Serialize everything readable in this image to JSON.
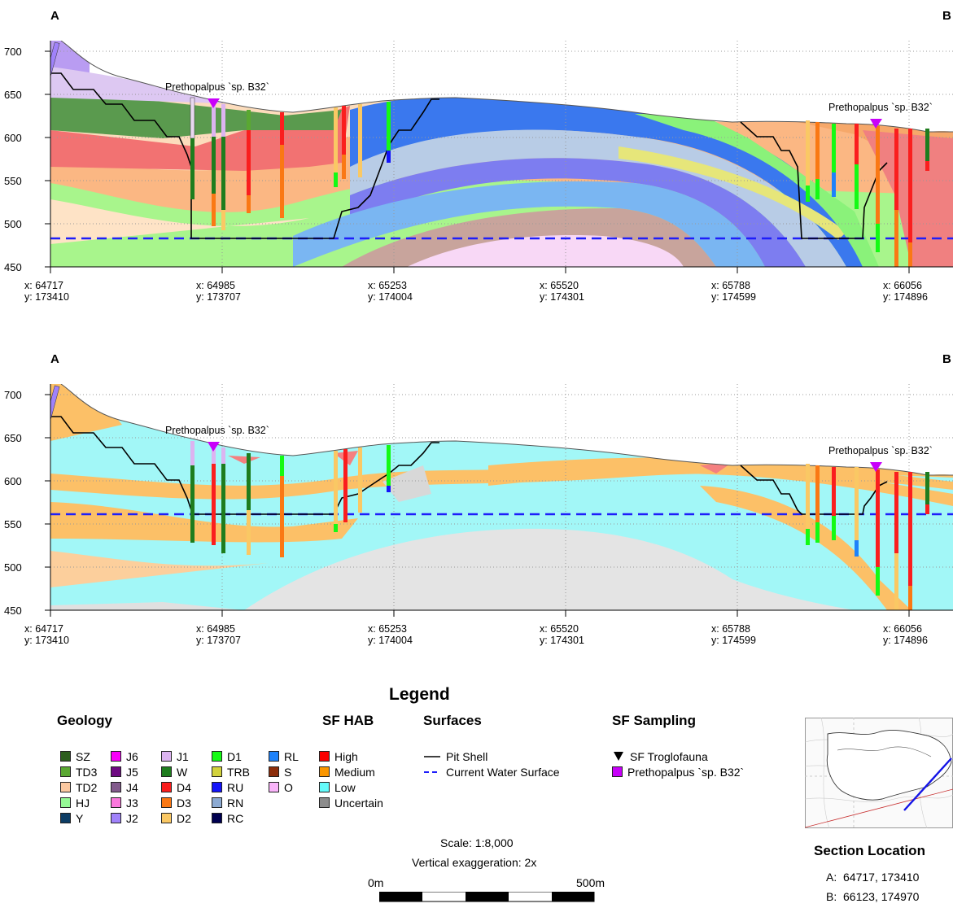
{
  "sections": [
    {
      "start_label": "A",
      "end_label": "B",
      "y_ticks": [
        "700",
        "650",
        "600",
        "550",
        "500",
        "450"
      ],
      "x_ticks": [
        {
          "x": "x: 64717",
          "y": "y: 173410"
        },
        {
          "x": "x: 64985",
          "y": "y: 173707"
        },
        {
          "x": "x: 65253",
          "y": "y: 174004"
        },
        {
          "x": "x: 65520",
          "y": "y: 174301"
        },
        {
          "x": "x: 65788",
          "y": "y: 174599"
        },
        {
          "x": "x: 66056",
          "y": "y: 174896"
        }
      ],
      "annotations": [
        "Prethopalpus `sp. B32`",
        "Prethopalpus `sp. B32`"
      ]
    },
    {
      "start_label": "A",
      "end_label": "B",
      "y_ticks": [
        "700",
        "650",
        "600",
        "550",
        "500",
        "450"
      ],
      "x_ticks": [
        {
          "x": "x: 64717",
          "y": "y: 173410"
        },
        {
          "x": "x: 64985",
          "y": "y: 173707"
        },
        {
          "x": "x: 65253",
          "y": "y: 174004"
        },
        {
          "x": "x: 65520",
          "y": "y: 174301"
        },
        {
          "x": "x: 65788",
          "y": "y: 174599"
        },
        {
          "x": "x: 66056",
          "y": "y: 174896"
        }
      ],
      "annotations": [
        "Prethopalpus `sp. B32`",
        "Prethopalpus `sp. B32`"
      ]
    }
  ],
  "legend": {
    "title": "Legend",
    "geology": {
      "title": "Geology",
      "columns": [
        [
          {
            "label": "SZ",
            "color": "#2d5e1e"
          },
          {
            "label": "TD3",
            "color": "#5aa832"
          },
          {
            "label": "TD2",
            "color": "#fac8a0"
          },
          {
            "label": "HJ",
            "color": "#96fa96"
          },
          {
            "label": "Y",
            "color": "#0c3c64"
          }
        ],
        [
          {
            "label": "J6",
            "color": "#fa00fa"
          },
          {
            "label": "J5",
            "color": "#6e0a82"
          },
          {
            "label": "J4",
            "color": "#825a8c"
          },
          {
            "label": "J3",
            "color": "#fa78dc"
          },
          {
            "label": "J2",
            "color": "#a082fa"
          }
        ],
        [
          {
            "label": "J1",
            "color": "#dcb4f0"
          },
          {
            "label": "W",
            "color": "#1e7d1e"
          },
          {
            "label": "D4",
            "color": "#fa1e1e"
          },
          {
            "label": "D3",
            "color": "#fa7814"
          },
          {
            "label": "D2",
            "color": "#fac864"
          }
        ],
        [
          {
            "label": "D1",
            "color": "#14fa14"
          },
          {
            "label": "TRB",
            "color": "#d2d23c"
          },
          {
            "label": "RU",
            "color": "#1414fa"
          },
          {
            "label": "RN",
            "color": "#8caad2"
          },
          {
            "label": "RC",
            "color": "#000050"
          }
        ],
        [
          {
            "label": "RL",
            "color": "#1e82fa"
          },
          {
            "label": "S",
            "color": "#8c2d0a"
          },
          {
            "label": "O",
            "color": "#fab4fa"
          }
        ]
      ]
    },
    "sf_hab": {
      "title": "SF HAB",
      "items": [
        {
          "label": "High",
          "color": "#fa0000"
        },
        {
          "label": "Medium",
          "color": "#fa9600"
        },
        {
          "label": "Low",
          "color": "#64fafa"
        },
        {
          "label": "Uncertain",
          "color": "#8c8c8c"
        }
      ]
    },
    "surfaces": {
      "title": "Surfaces",
      "items": [
        {
          "label": "Pit Shell",
          "color": "#000000"
        },
        {
          "label": "Current Water Surface",
          "color": "#1e1efa"
        }
      ]
    },
    "sf_sampling": {
      "title": "SF Sampling",
      "items": [
        {
          "label": "SF Troglofauna",
          "color": "#000000"
        },
        {
          "label": "Prethopalpus `sp. B32`",
          "color": "#c800fa"
        }
      ]
    },
    "scale": {
      "scale_text": "Scale: 1:8,000",
      "exaggeration_text": "Vertical exaggeration: 2x",
      "bar_start": "0m",
      "bar_end": "500m"
    },
    "section_location": {
      "title": "Section Location",
      "points": [
        {
          "key": "A:",
          "value": "64717, 173410"
        },
        {
          "key": "B:",
          "value": "66123, 174970"
        }
      ]
    }
  }
}
